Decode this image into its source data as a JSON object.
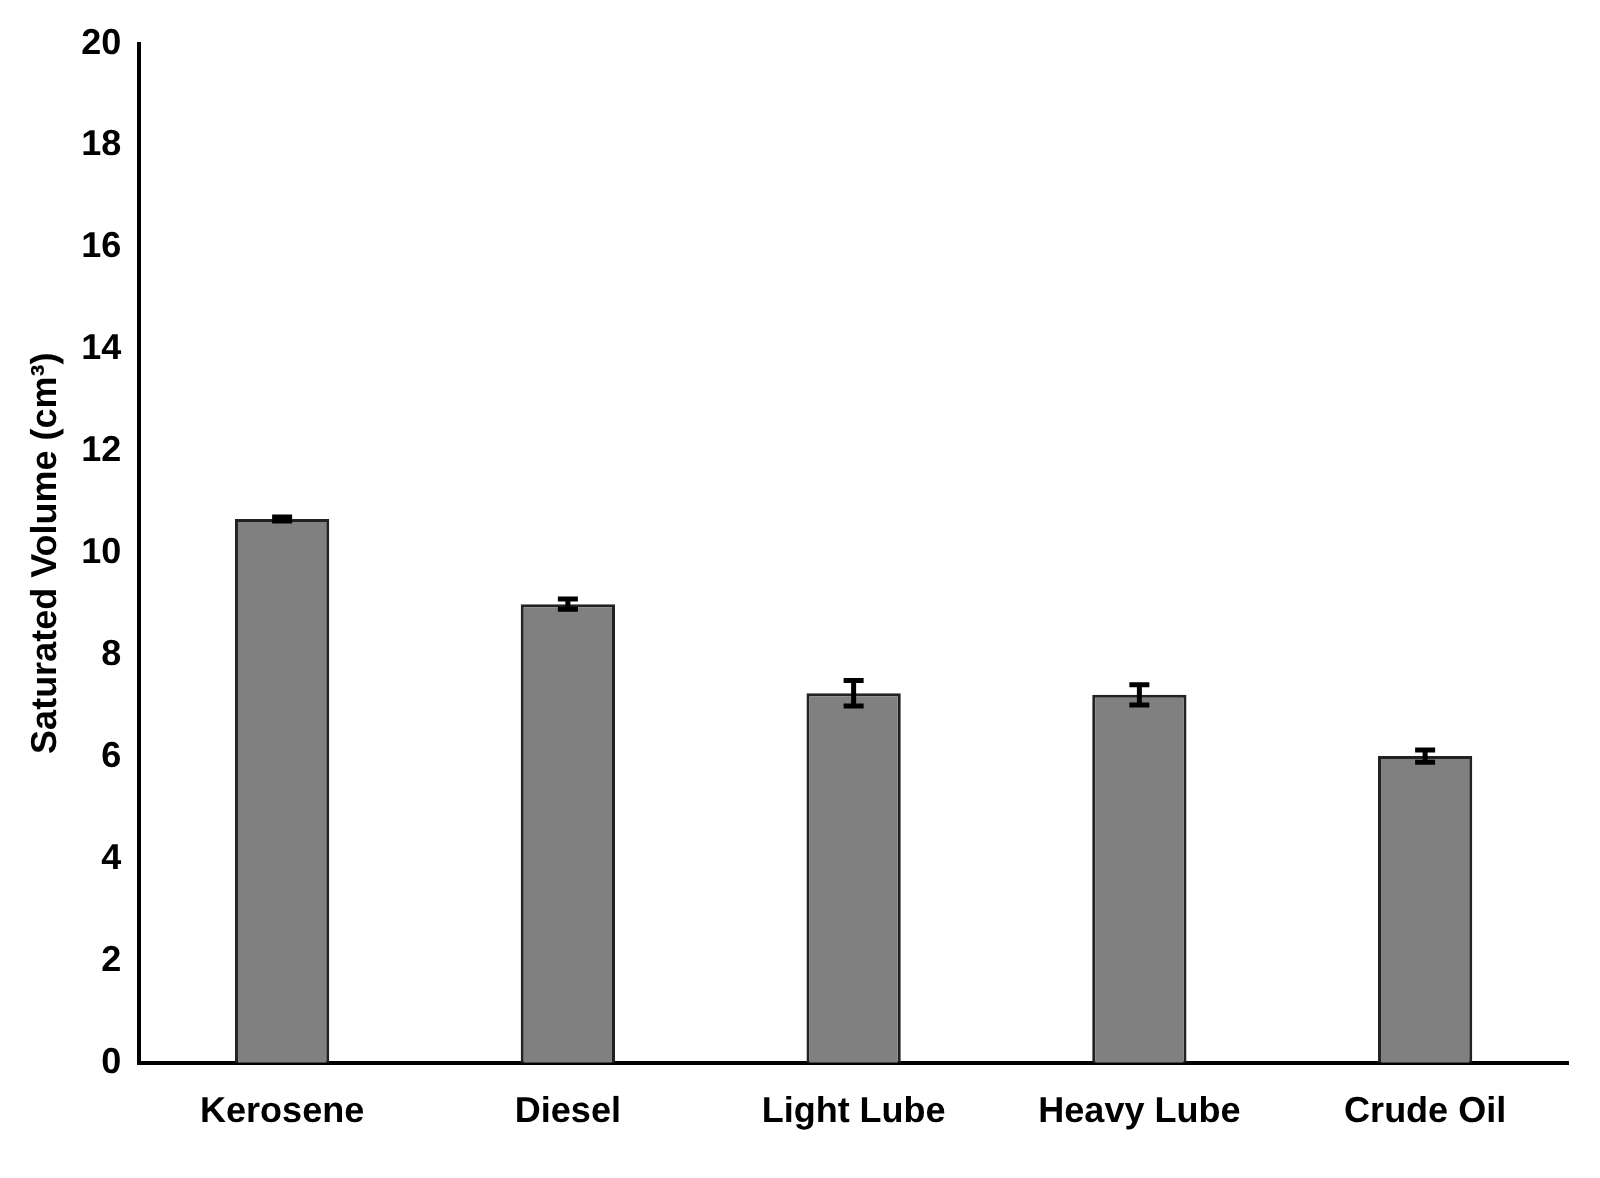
{
  "chart_data": {
    "type": "bar",
    "ylabel": "Saturated Volume (cm³)",
    "categories": [
      "Kerosene",
      "Diesel",
      "Light Lube",
      "Heavy Lube",
      "Crude Oil"
    ],
    "values": [
      10.67,
      9.0,
      7.25,
      7.22,
      6.02
    ],
    "errors": [
      0.04,
      0.1,
      0.25,
      0.2,
      0.12
    ],
    "color": "#808080",
    "ylim": [
      0,
      20
    ],
    "yticks": [
      0,
      2,
      4,
      6,
      8,
      10,
      12,
      14,
      16,
      18,
      20
    ],
    "grid": false,
    "legend": false
  }
}
